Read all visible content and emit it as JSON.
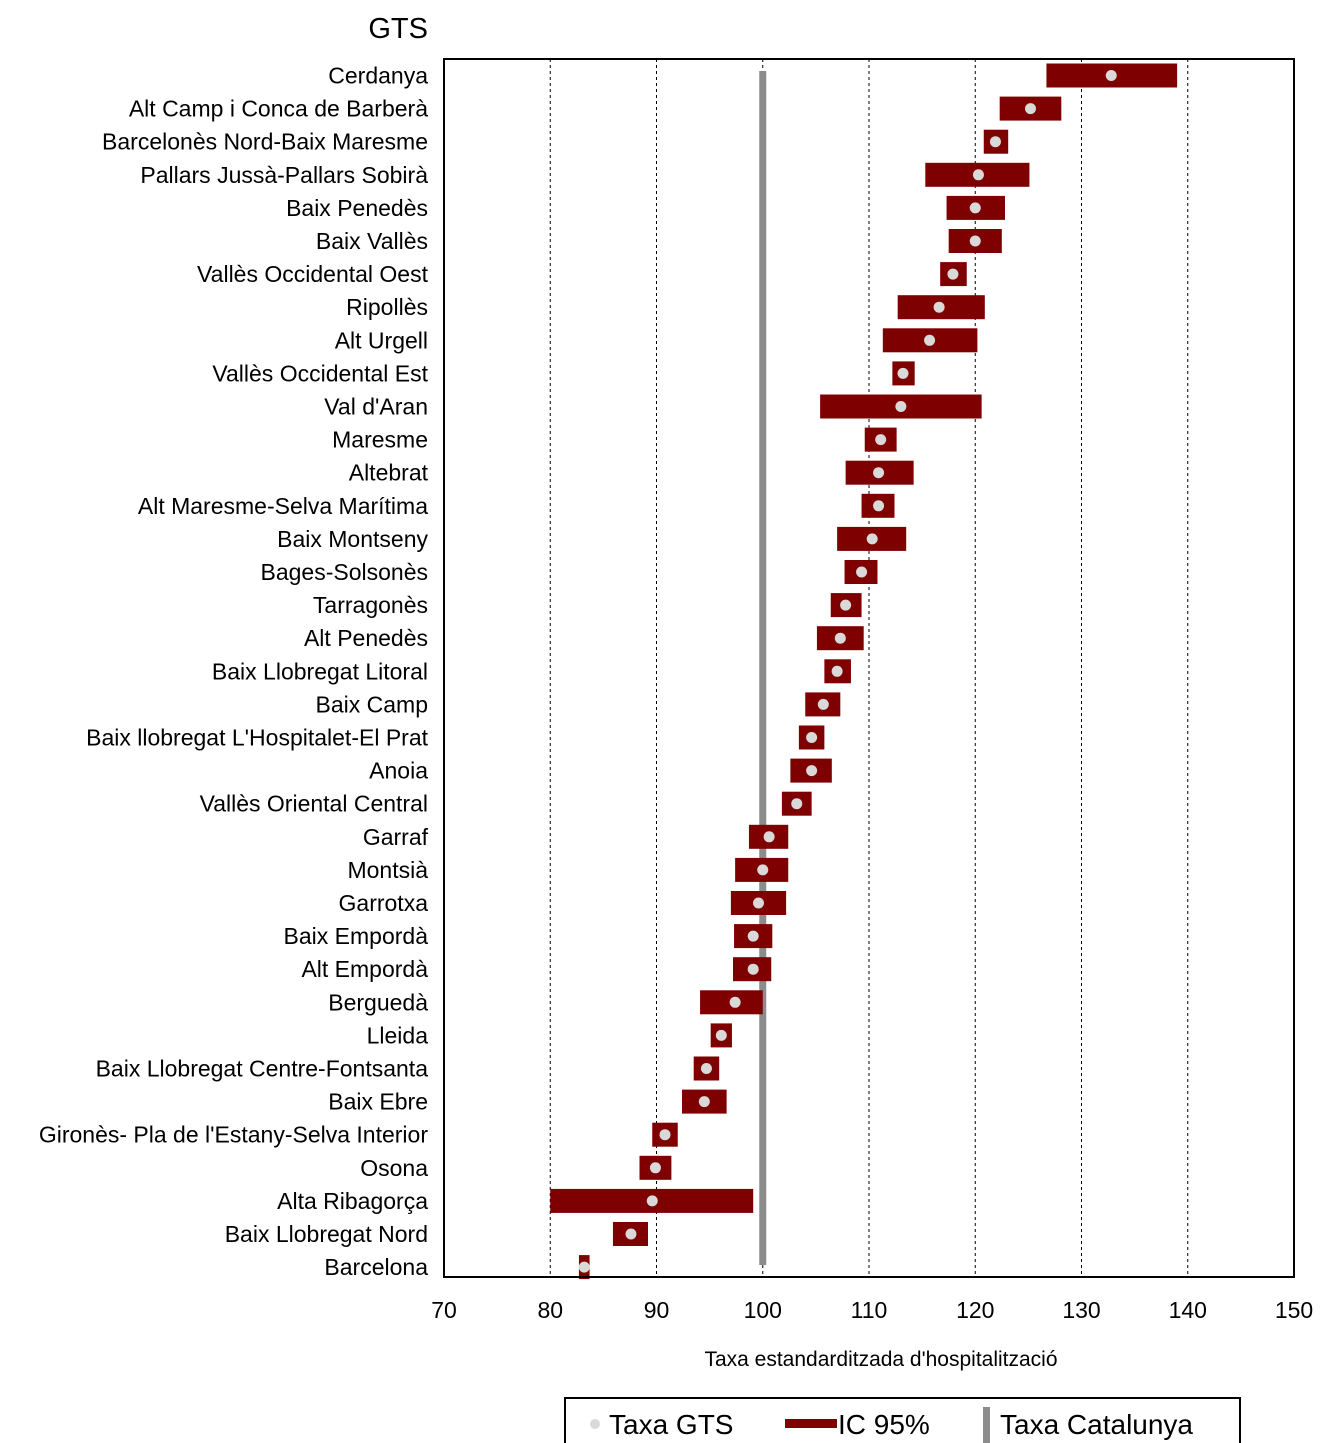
{
  "chart_data": {
    "type": "forest",
    "title": "GTS",
    "xlabel": "Taxa estandarditzada d'hospitalització",
    "xlim": [
      70,
      150
    ],
    "x_ticks": [
      70,
      80,
      90,
      100,
      110,
      120,
      130,
      140,
      150
    ],
    "grid": "vertical dashed",
    "reference_value": 100,
    "legend_position": "bottom",
    "legend": {
      "point": "Taxa  GTS",
      "interval": "IC 95%",
      "reference": "Taxa Catalunya"
    },
    "colors": {
      "interval": "#7f0000",
      "point": "#d9d9d9",
      "reference": "#8c8c8c"
    },
    "rows": [
      {
        "label": "Cerdanya",
        "value": 132.8,
        "low": 126.7,
        "high": 139.0
      },
      {
        "label": "Alt Camp i Conca de Barberà",
        "value": 125.2,
        "low": 122.3,
        "high": 128.1
      },
      {
        "label": "Barcelonès Nord-Baix Maresme",
        "value": 121.9,
        "low": 120.8,
        "high": 123.1
      },
      {
        "label": "Pallars Jussà-Pallars Sobirà",
        "value": 120.3,
        "low": 115.3,
        "high": 125.1
      },
      {
        "label": "Baix Penedès",
        "value": 120.0,
        "low": 117.3,
        "high": 122.8
      },
      {
        "label": "Baix Vallès",
        "value": 120.0,
        "low": 117.5,
        "high": 122.5
      },
      {
        "label": "Vallès Occidental Oest",
        "value": 117.9,
        "low": 116.7,
        "high": 119.2
      },
      {
        "label": "Ripollès",
        "value": 116.6,
        "low": 112.7,
        "high": 120.9
      },
      {
        "label": "Alt Urgell",
        "value": 115.7,
        "low": 111.3,
        "high": 120.2
      },
      {
        "label": "Vallès Occidental Est",
        "value": 113.2,
        "low": 112.2,
        "high": 114.3
      },
      {
        "label": "Val d'Aran",
        "value": 113.0,
        "low": 105.4,
        "high": 120.6
      },
      {
        "label": "Maresme",
        "value": 111.1,
        "low": 109.6,
        "high": 112.6
      },
      {
        "label": "Altebrat",
        "value": 110.9,
        "low": 107.8,
        "high": 114.2
      },
      {
        "label": "Alt Maresme-Selva Marítima",
        "value": 110.9,
        "low": 109.3,
        "high": 112.4
      },
      {
        "label": "Baix Montseny",
        "value": 110.3,
        "low": 107.0,
        "high": 113.5
      },
      {
        "label": "Bages-Solsonès",
        "value": 109.3,
        "low": 107.7,
        "high": 110.8
      },
      {
        "label": "Tarragonès",
        "value": 107.8,
        "low": 106.4,
        "high": 109.3
      },
      {
        "label": "Alt Penedès",
        "value": 107.3,
        "low": 105.1,
        "high": 109.5
      },
      {
        "label": "Baix Llobregat Litoral",
        "value": 107.0,
        "low": 105.8,
        "high": 108.3
      },
      {
        "label": "Baix Camp",
        "value": 105.7,
        "low": 104.0,
        "high": 107.3
      },
      {
        "label": "Baix llobregat L'Hospitalet-El Prat",
        "value": 104.6,
        "low": 103.4,
        "high": 105.8
      },
      {
        "label": "Anoia",
        "value": 104.6,
        "low": 102.6,
        "high": 106.5
      },
      {
        "label": "Vallès Oriental Central",
        "value": 103.2,
        "low": 101.8,
        "high": 104.6
      },
      {
        "label": "Garraf",
        "value": 100.6,
        "low": 98.7,
        "high": 102.4
      },
      {
        "label": "Montsià",
        "value": 100.0,
        "low": 97.4,
        "high": 102.4
      },
      {
        "label": "Garrotxa",
        "value": 99.6,
        "low": 97.0,
        "high": 102.2
      },
      {
        "label": "Baix Empordà",
        "value": 99.1,
        "low": 97.3,
        "high": 100.9
      },
      {
        "label": "Alt Empordà",
        "value": 99.1,
        "low": 97.2,
        "high": 100.8
      },
      {
        "label": "Berguedà",
        "value": 97.4,
        "low": 94.1,
        "high": 100.0
      },
      {
        "label": "Lleida",
        "value": 96.1,
        "low": 95.1,
        "high": 97.1
      },
      {
        "label": "Baix Llobregat Centre-Fontsanta",
        "value": 94.7,
        "low": 93.5,
        "high": 95.9
      },
      {
        "label": "Baix Ebre",
        "value": 94.5,
        "low": 92.4,
        "high": 96.6
      },
      {
        "label": "Gironès- Pla de l'Estany-Selva Interior",
        "value": 90.8,
        "low": 89.6,
        "high": 92.0
      },
      {
        "label": "Osona",
        "value": 89.9,
        "low": 88.4,
        "high": 91.4
      },
      {
        "label": "Alta Ribagorça",
        "value": 89.6,
        "low": 80.0,
        "high": 99.1
      },
      {
        "label": "Baix Llobregat Nord",
        "value": 87.6,
        "low": 85.9,
        "high": 89.2
      },
      {
        "label": "Barcelona",
        "value": 83.2,
        "low": 82.7,
        "high": 83.7
      }
    ]
  }
}
